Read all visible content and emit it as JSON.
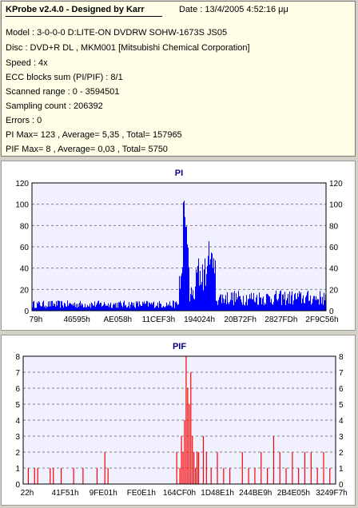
{
  "header": {
    "title": "KProbe v2.4.0 - Designed by Karr",
    "date": "Date : 13/4/2005 4:52:16 μμ"
  },
  "info_lines": [
    "Model : 3-0-0-0 D:LITE-ON DVDRW SOHW-1673S JS05",
    "Disc : DVD+R DL , MKM001 [Mitsubishi Chemical Corporation]",
    "Speed : 4x",
    "ECC blocks sum (PI/PIF) : 8/1",
    "Scanned range : 0 - 3594501",
    "Sampling count : 206392",
    "Errors : 0",
    "PI Max= 123 , Average= 5,35 , Total= 157965",
    "PIF Max= 8 , Average= 0,03 , Total= 5750"
  ],
  "colors": {
    "pi_bars": "#0000ff",
    "pif_bars": "#ff0000",
    "plot_bg": "#f0f0ff",
    "grid": "#808080"
  },
  "chart_data": [
    {
      "type": "bar",
      "title": "PI",
      "xlabel": "",
      "ylabel": "",
      "ylim": [
        0,
        120
      ],
      "yticks": [
        0,
        20,
        40,
        60,
        80,
        100,
        120
      ],
      "xticks": [
        "79h",
        "46595h",
        "AE058h",
        "11CEF3h",
        "194024h",
        "20B72Fh",
        "2827FDh",
        "2F9C56h"
      ],
      "grid": true,
      "series_color": "#0000ff",
      "segments": [
        {
          "x_from": 0.0,
          "x_to": 0.5,
          "base": 6,
          "amp": 6
        },
        {
          "x_from": 0.5,
          "x_to": 0.535,
          "base": 30,
          "amp": 30
        },
        {
          "x_from": 0.535,
          "x_to": 0.555,
          "base": 15,
          "amp": 15
        },
        {
          "x_from": 0.555,
          "x_to": 0.625,
          "base": 35,
          "amp": 30
        },
        {
          "x_from": 0.625,
          "x_to": 1.0,
          "base": 12,
          "amp": 12
        }
      ],
      "peaks": [
        {
          "x": 0.515,
          "y": 123
        },
        {
          "x": 0.52,
          "y": 100
        },
        {
          "x": 0.525,
          "y": 85
        },
        {
          "x": 0.53,
          "y": 60
        },
        {
          "x": 0.6,
          "y": 70
        },
        {
          "x": 0.61,
          "y": 65
        },
        {
          "x": 0.605,
          "y": 55
        },
        {
          "x": 0.615,
          "y": 45
        }
      ]
    },
    {
      "type": "bar",
      "title": "PIF",
      "xlabel": "",
      "ylabel": "",
      "ylim": [
        0,
        8
      ],
      "yticks": [
        0,
        1,
        2,
        3,
        4,
        5,
        6,
        7,
        8
      ],
      "xticks": [
        "22h",
        "41F51h",
        "9FE01h",
        "FE0E1h",
        "164CF0h",
        "1D48E1h",
        "244BE9h",
        "2B4E05h",
        "3249F7h"
      ],
      "grid": true,
      "series_color": "#ff0000",
      "bars": [
        {
          "x": 0.015,
          "y": 1
        },
        {
          "x": 0.035,
          "y": 1
        },
        {
          "x": 0.045,
          "y": 1
        },
        {
          "x": 0.085,
          "y": 1
        },
        {
          "x": 0.095,
          "y": 1
        },
        {
          "x": 0.12,
          "y": 1
        },
        {
          "x": 0.16,
          "y": 1
        },
        {
          "x": 0.19,
          "y": 1
        },
        {
          "x": 0.235,
          "y": 1
        },
        {
          "x": 0.26,
          "y": 2
        },
        {
          "x": 0.27,
          "y": 1
        },
        {
          "x": 0.49,
          "y": 2
        },
        {
          "x": 0.5,
          "y": 1
        },
        {
          "x": 0.505,
          "y": 3
        },
        {
          "x": 0.51,
          "y": 2
        },
        {
          "x": 0.515,
          "y": 4
        },
        {
          "x": 0.52,
          "y": 8
        },
        {
          "x": 0.525,
          "y": 6
        },
        {
          "x": 0.53,
          "y": 5
        },
        {
          "x": 0.535,
          "y": 7
        },
        {
          "x": 0.54,
          "y": 3
        },
        {
          "x": 0.545,
          "y": 2
        },
        {
          "x": 0.55,
          "y": 1
        },
        {
          "x": 0.555,
          "y": 2
        },
        {
          "x": 0.56,
          "y": 2
        },
        {
          "x": 0.575,
          "y": 3
        },
        {
          "x": 0.585,
          "y": 2
        },
        {
          "x": 0.6,
          "y": 1
        },
        {
          "x": 0.62,
          "y": 2
        },
        {
          "x": 0.64,
          "y": 1
        },
        {
          "x": 0.66,
          "y": 1
        },
        {
          "x": 0.7,
          "y": 2
        },
        {
          "x": 0.72,
          "y": 1
        },
        {
          "x": 0.74,
          "y": 1
        },
        {
          "x": 0.76,
          "y": 2
        },
        {
          "x": 0.78,
          "y": 1
        },
        {
          "x": 0.8,
          "y": 3
        },
        {
          "x": 0.82,
          "y": 2
        },
        {
          "x": 0.84,
          "y": 1
        },
        {
          "x": 0.86,
          "y": 2
        },
        {
          "x": 0.88,
          "y": 1
        },
        {
          "x": 0.9,
          "y": 2
        },
        {
          "x": 0.92,
          "y": 2
        },
        {
          "x": 0.94,
          "y": 1
        },
        {
          "x": 0.96,
          "y": 2
        },
        {
          "x": 0.98,
          "y": 1
        }
      ]
    }
  ]
}
